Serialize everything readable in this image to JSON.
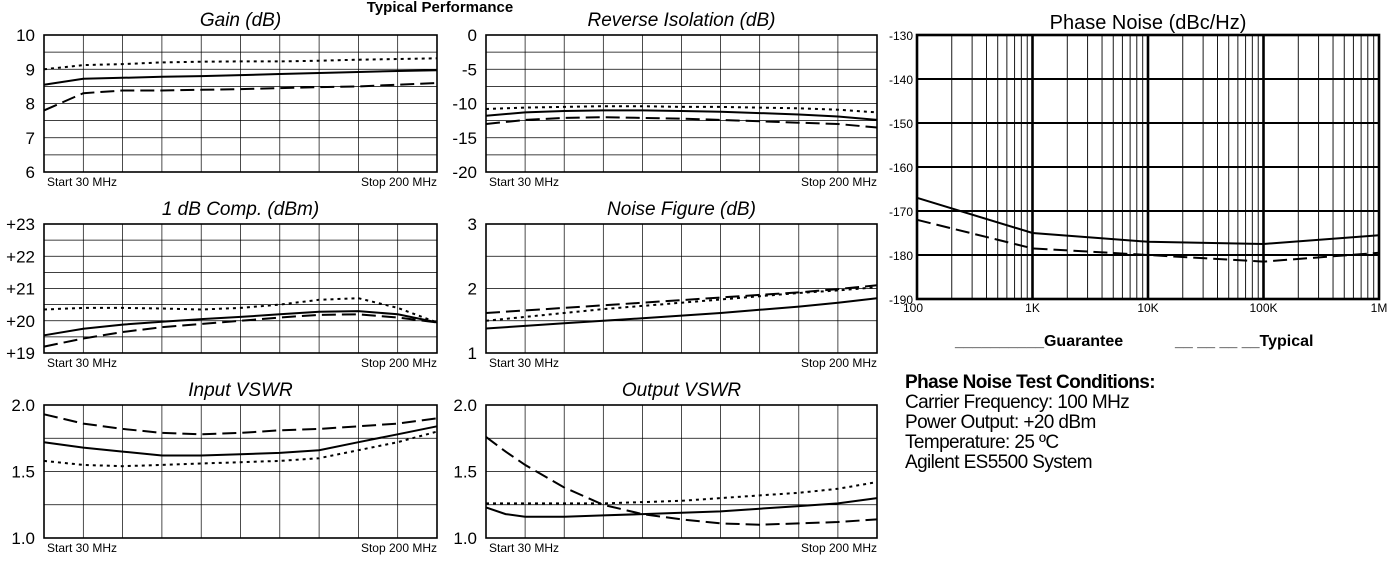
{
  "page_title": "Typical Performance",
  "chart_data": [
    {
      "type": "line",
      "title": "Gain (dB)",
      "ylim": [
        6,
        10
      ],
      "yticks": [
        "10",
        "9",
        "8",
        "7",
        "6"
      ],
      "start_label": "Start  30  MHz",
      "stop_label": "Stop  200  MHz",
      "x": [
        0,
        0.1,
        0.2,
        0.3,
        0.4,
        0.5,
        0.6,
        0.7,
        0.8,
        0.9,
        1.0
      ],
      "series": [
        {
          "style": "solid",
          "values": [
            8.55,
            8.72,
            8.75,
            8.78,
            8.8,
            8.83,
            8.86,
            8.89,
            8.92,
            8.95,
            8.97
          ]
        },
        {
          "style": "dashed",
          "values": [
            7.8,
            8.3,
            8.38,
            8.38,
            8.4,
            8.42,
            8.45,
            8.48,
            8.5,
            8.55,
            8.6
          ]
        },
        {
          "style": "dotted",
          "values": [
            9.0,
            9.12,
            9.15,
            9.2,
            9.22,
            9.23,
            9.23,
            9.25,
            9.28,
            9.3,
            9.32
          ]
        }
      ]
    },
    {
      "type": "line",
      "title": "Reverse Isolation (dB)",
      "ylim": [
        -20,
        0
      ],
      "yticks": [
        "0",
        "-5",
        "-10",
        "-15",
        "-20"
      ],
      "start_label": "Start  30  MHz",
      "stop_label": "Stop  200  MHz",
      "x": [
        0,
        0.1,
        0.2,
        0.3,
        0.4,
        0.5,
        0.6,
        0.7,
        0.8,
        0.9,
        1.0
      ],
      "series": [
        {
          "style": "solid",
          "values": [
            -11.8,
            -11.3,
            -11.1,
            -11.0,
            -11.0,
            -11.1,
            -11.2,
            -11.4,
            -11.6,
            -11.9,
            -12.4
          ]
        },
        {
          "style": "dashed",
          "values": [
            -13.0,
            -12.4,
            -12.1,
            -12.0,
            -12.1,
            -12.2,
            -12.4,
            -12.6,
            -12.8,
            -13.0,
            -13.5
          ]
        },
        {
          "style": "dotted",
          "values": [
            -10.8,
            -10.6,
            -10.5,
            -10.4,
            -10.4,
            -10.5,
            -10.5,
            -10.6,
            -10.7,
            -10.9,
            -11.3
          ]
        }
      ]
    },
    {
      "type": "line",
      "title": "1 dB Comp. (dBm)",
      "ylim": [
        19,
        23
      ],
      "yticks": [
        "+23",
        "+22",
        "+21",
        "+20",
        "+19"
      ],
      "start_label": "Start  30  MHz",
      "stop_label": "Stop  200  MHz",
      "x": [
        0,
        0.1,
        0.2,
        0.3,
        0.4,
        0.5,
        0.6,
        0.7,
        0.8,
        0.9,
        1.0
      ],
      "series": [
        {
          "style": "solid",
          "values": [
            19.55,
            19.75,
            19.88,
            19.97,
            20.05,
            20.12,
            20.2,
            20.28,
            20.3,
            20.2,
            19.95
          ]
        },
        {
          "style": "dashed",
          "values": [
            19.2,
            19.45,
            19.65,
            19.8,
            19.9,
            20.0,
            20.1,
            20.18,
            20.2,
            20.1,
            19.95
          ]
        },
        {
          "style": "dotted",
          "values": [
            20.35,
            20.4,
            20.4,
            20.38,
            20.35,
            20.4,
            20.5,
            20.65,
            20.7,
            20.4,
            19.95
          ]
        }
      ]
    },
    {
      "type": "line",
      "title": "Noise Figure (dB)",
      "ylim": [
        1,
        3
      ],
      "yticks": [
        "3",
        "2",
        "1"
      ],
      "start_label": "Start  30  MHz",
      "stop_label": "Stop  200  MHz",
      "x": [
        0,
        0.1,
        0.2,
        0.3,
        0.4,
        0.5,
        0.6,
        0.7,
        0.8,
        0.9,
        1.0
      ],
      "series": [
        {
          "style": "solid",
          "values": [
            1.38,
            1.42,
            1.46,
            1.5,
            1.54,
            1.58,
            1.62,
            1.67,
            1.72,
            1.78,
            1.85
          ]
        },
        {
          "style": "dashed",
          "values": [
            1.62,
            1.66,
            1.7,
            1.74,
            1.78,
            1.82,
            1.86,
            1.9,
            1.94,
            1.99,
            2.05
          ]
        },
        {
          "style": "dotted",
          "values": [
            1.5,
            1.56,
            1.62,
            1.68,
            1.73,
            1.78,
            1.83,
            1.88,
            1.93,
            1.97,
            2.02
          ]
        }
      ]
    },
    {
      "type": "line",
      "title": "Input VSWR",
      "ylim": [
        1.0,
        2.0
      ],
      "yticks": [
        "2.0",
        "1.5",
        "1.0"
      ],
      "start_label": "Start  30  MHz",
      "stop_label": "Stop  200  MHz",
      "x": [
        0,
        0.1,
        0.2,
        0.3,
        0.4,
        0.5,
        0.6,
        0.7,
        0.8,
        0.9,
        1.0
      ],
      "series": [
        {
          "style": "solid",
          "values": [
            1.72,
            1.68,
            1.65,
            1.62,
            1.62,
            1.63,
            1.64,
            1.66,
            1.72,
            1.78,
            1.84
          ]
        },
        {
          "style": "dashed",
          "values": [
            1.93,
            1.86,
            1.82,
            1.79,
            1.78,
            1.79,
            1.81,
            1.82,
            1.84,
            1.86,
            1.9
          ]
        },
        {
          "style": "dotted",
          "values": [
            1.58,
            1.55,
            1.54,
            1.55,
            1.56,
            1.57,
            1.58,
            1.6,
            1.66,
            1.72,
            1.8
          ]
        }
      ]
    },
    {
      "type": "line",
      "title": "Output VSWR",
      "ylim": [
        1.0,
        2.0
      ],
      "yticks": [
        "2.0",
        "1.5",
        "1.0"
      ],
      "start_label": "Start  30  MHz",
      "stop_label": "Stop  200  MHz",
      "x": [
        0,
        0.05,
        0.1,
        0.2,
        0.3,
        0.4,
        0.5,
        0.6,
        0.7,
        0.8,
        0.9,
        1.0
      ],
      "series": [
        {
          "style": "solid",
          "values": [
            1.23,
            1.18,
            1.16,
            1.16,
            1.17,
            1.18,
            1.19,
            1.2,
            1.22,
            1.24,
            1.26,
            1.3
          ]
        },
        {
          "style": "dashed",
          "values": [
            1.76,
            1.65,
            1.55,
            1.38,
            1.25,
            1.18,
            1.14,
            1.11,
            1.1,
            1.11,
            1.12,
            1.14
          ]
        },
        {
          "style": "dotted",
          "values": [
            1.26,
            1.26,
            1.26,
            1.26,
            1.26,
            1.27,
            1.28,
            1.3,
            1.32,
            1.34,
            1.37,
            1.42
          ]
        }
      ]
    },
    {
      "type": "line",
      "title": "Phase Noise (dBc/Hz)",
      "x_scale": "log",
      "ylim": [
        -190,
        -130
      ],
      "xlim": [
        100,
        1000000
      ],
      "yticks": [
        "-130",
        "-140",
        "-150",
        "-160",
        "-170",
        "-180",
        "-190"
      ],
      "xticks": [
        "100",
        "1K",
        "10K",
        "100K",
        "1M"
      ],
      "x": [
        100,
        1000,
        10000,
        100000,
        1000000
      ],
      "series": [
        {
          "name": "Guarantee",
          "style": "solid",
          "values": [
            -167,
            -175,
            -177,
            -177.5,
            -175.5
          ]
        },
        {
          "name": "Typical",
          "style": "dashed",
          "values": [
            -172,
            -178.5,
            -180,
            -181.5,
            -179.5
          ]
        }
      ],
      "legend": [
        "__________Guarantee",
        "__ __ __ __Typical"
      ]
    }
  ],
  "conditions": {
    "heading": "Phase Noise Test Conditions:",
    "lines": [
      "Carrier Frequency: 100 MHz",
      "Power Output: +20 dBm",
      "Temperature: 25 ºC",
      "Agilent ES5500 System"
    ]
  }
}
